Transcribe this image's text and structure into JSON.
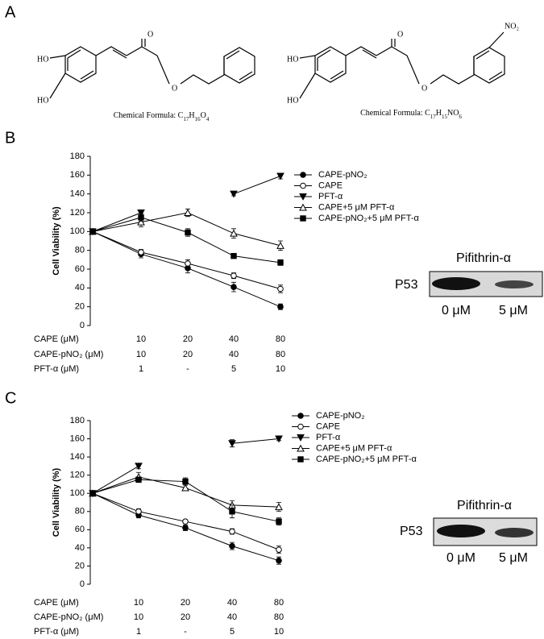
{
  "panel_labels": [
    "A",
    "B",
    "C"
  ],
  "structures": [
    {
      "atoms": [
        "HO",
        "HO",
        "O",
        "O"
      ],
      "formula": [
        {
          "text": "Chemical Formula: C"
        },
        {
          "sub": "17"
        },
        {
          "text": "H"
        },
        {
          "sub": "16"
        },
        {
          "text": "O"
        },
        {
          "sub": "4"
        }
      ]
    },
    {
      "atoms": [
        "HO",
        "HO",
        "O",
        "O",
        "NO₂"
      ],
      "formula": [
        {
          "text": "Chemical Formula: C"
        },
        {
          "sub": "17"
        },
        {
          "text": "H"
        },
        {
          "sub": "15"
        },
        {
          "text": "NO"
        },
        {
          "sub": "6"
        }
      ]
    }
  ],
  "chart_data": [
    {
      "type": "line",
      "ylabel": "Cell Viability (%)",
      "ylim": [
        0,
        180
      ],
      "yticks": [
        0,
        20,
        40,
        60,
        80,
        100,
        120,
        140,
        160,
        180
      ],
      "series": [
        {
          "name": "CAPE-pNO₂",
          "marker": "filled-circle",
          "color": "#000000",
          "values": [
            100,
            76,
            61,
            41,
            20
          ],
          "errors": [
            0,
            4,
            5,
            5,
            3
          ]
        },
        {
          "name": "CAPE",
          "marker": "open-circle",
          "color": "#000000",
          "values": [
            100,
            78,
            66,
            53,
            39
          ],
          "errors": [
            0,
            3,
            4,
            3,
            4
          ]
        },
        {
          "name": "PFT-α",
          "marker": "filled-triangle-down",
          "color": "#000000",
          "values": [
            100,
            120,
            null,
            140,
            159
          ],
          "errors": [
            0,
            3,
            null,
            2,
            3
          ]
        },
        {
          "name": "CAPE+5 μM PFT-α",
          "marker": "open-triangle-up",
          "color": "#000000",
          "values": [
            100,
            110,
            120,
            98,
            85
          ],
          "errors": [
            0,
            5,
            4,
            5,
            5
          ]
        },
        {
          "name": "CAPE-pNO₂+5 μM PFT-α",
          "marker": "filled-square",
          "color": "#000000",
          "values": [
            100,
            115,
            99,
            74,
            67
          ],
          "errors": [
            0,
            4,
            4,
            2,
            3
          ]
        }
      ],
      "dose_table": {
        "rows": [
          {
            "label": "CAPE (μM)",
            "values": [
              "10",
              "20",
              "40",
              "80"
            ]
          },
          {
            "label": "CAPE-pNO₂ (μM)",
            "values": [
              "10",
              "20",
              "40",
              "80"
            ]
          },
          {
            "label": "PFT-α (μM)",
            "values": [
              "1",
              "-",
              "5",
              "10"
            ]
          }
        ]
      }
    },
    {
      "type": "line",
      "ylabel": "Cell Viability (%)",
      "ylim": [
        0,
        180
      ],
      "yticks": [
        0,
        20,
        40,
        60,
        80,
        100,
        120,
        140,
        160,
        180
      ],
      "series": [
        {
          "name": "CAPE-pNO₂",
          "marker": "filled-circle",
          "color": "#000000",
          "values": [
            100,
            76,
            62,
            42,
            26
          ],
          "errors": [
            0,
            3,
            3,
            4,
            4
          ]
        },
        {
          "name": "CAPE",
          "marker": "open-circle",
          "color": "#000000",
          "values": [
            100,
            80,
            69,
            58,
            38
          ],
          "errors": [
            0,
            3,
            2,
            3,
            4
          ]
        },
        {
          "name": "PFT-α",
          "marker": "filled-triangle-down",
          "color": "#000000",
          "values": [
            100,
            130,
            null,
            155,
            160
          ],
          "errors": [
            0,
            3,
            null,
            4,
            2
          ]
        },
        {
          "name": "CAPE+5 μM PFT-α",
          "marker": "open-triangle-up",
          "color": "#000000",
          "values": [
            100,
            118,
            106,
            87,
            85
          ],
          "errors": [
            0,
            5,
            3,
            5,
            5
          ]
        },
        {
          "name": "CAPE-pNO₂+5 μM PFT-α",
          "marker": "filled-square",
          "color": "#000000",
          "values": [
            100,
            115,
            113,
            80,
            69
          ],
          "errors": [
            0,
            3,
            4,
            7,
            4
          ]
        }
      ],
      "dose_table": {
        "rows": [
          {
            "label": "CAPE (μM)",
            "values": [
              "10",
              "20",
              "40",
              "80"
            ]
          },
          {
            "label": "CAPE-pNO₂ (μM)",
            "values": [
              "10",
              "20",
              "40",
              "80"
            ]
          },
          {
            "label": "PFT-α (μM)",
            "values": [
              "1",
              "-",
              "5",
              "10"
            ]
          }
        ]
      }
    }
  ],
  "blots": [
    {
      "title": "Pifithrin-α",
      "protein": "P53",
      "lanes": [
        "0 μM",
        "5 μM"
      ]
    },
    {
      "title": "Pifithrin-α",
      "protein": "P53",
      "lanes": [
        "0 μM",
        "5 μM"
      ]
    }
  ]
}
